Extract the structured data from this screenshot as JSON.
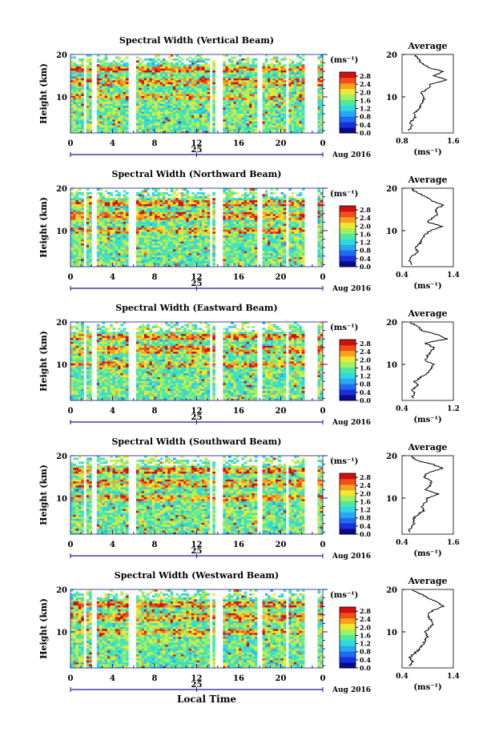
{
  "colors": {
    "colormap": [
      "#0a0a8c",
      "#1830d8",
      "#1e6cf0",
      "#28a8f0",
      "#30d8e0",
      "#50e8a0",
      "#a0f060",
      "#f0e830",
      "#f8a020",
      "#f05018",
      "#d01010"
    ],
    "background": "#ffffff",
    "axis": "#1a1a8c",
    "line": "#000000"
  },
  "footer": {
    "xlabel": "Local Time"
  },
  "chart_data": [
    {
      "type": "heatmap",
      "title": "Spectral Width (Vertical Beam)",
      "ylabel": "Height (km)",
      "ylim": [
        1.5,
        20
      ],
      "yticks": [
        "10",
        "20"
      ],
      "xlim": [
        0,
        24
      ],
      "xticks": [
        "0",
        "4",
        "8",
        "12",
        "16",
        "20",
        "0"
      ],
      "date_label": "25",
      "month_label": "Aug 2016",
      "colorbar": {
        "unit": "(ms⁻¹)",
        "ticks": [
          "2.8",
          "2.4",
          "2.0",
          "1.6",
          "1.2",
          "0.8",
          "0.4",
          "0.0"
        ],
        "range": [
          0,
          3.0
        ]
      },
      "gaps_hours": [
        [
          1.2,
          1.5
        ],
        [
          2.1,
          2.4
        ],
        [
          5.4,
          6.2
        ],
        [
          13.2,
          13.4
        ],
        [
          13.8,
          14.4
        ],
        [
          17.8,
          18.2
        ],
        [
          20.6,
          20.8
        ],
        [
          22.2,
          23.6
        ]
      ],
      "profile": {
        "title": "Average",
        "xlabel": "(ms⁻¹)",
        "xlim": [
          0.8,
          1.6
        ],
        "xticks": [
          "0.8",
          "1.6"
        ],
        "yticks": [
          "10",
          "20"
        ],
        "height_km": [
          2,
          3,
          4,
          5,
          6,
          7,
          8,
          9,
          10,
          11,
          12,
          13,
          14,
          15,
          16,
          17,
          18,
          19,
          20
        ],
        "value": [
          0.9,
          0.95,
          0.92,
          1.0,
          0.98,
          1.05,
          1.1,
          1.12,
          1.15,
          1.1,
          1.2,
          1.25,
          1.5,
          1.3,
          1.45,
          1.2,
          1.1,
          1.05,
          1.0
        ]
      }
    },
    {
      "type": "heatmap",
      "title": "Spectral Width (Northward Beam)",
      "ylabel": "Height (km)",
      "ylim": [
        1.5,
        20
      ],
      "yticks": [
        "10",
        "20"
      ],
      "xlim": [
        0,
        24
      ],
      "xticks": [
        "0",
        "4",
        "8",
        "12",
        "16",
        "20",
        "0"
      ],
      "date_label": "25",
      "month_label": "Aug 2016",
      "colorbar": {
        "unit": "(ms⁻¹)",
        "ticks": [
          "2.8",
          "2.4",
          "2.0",
          "1.6",
          "1.2",
          "0.8",
          "0.4",
          "0.0"
        ],
        "range": [
          0,
          3.0
        ]
      },
      "gaps_hours": [
        [
          1.2,
          1.5
        ],
        [
          2.1,
          2.4
        ],
        [
          5.4,
          6.2
        ],
        [
          13.2,
          13.4
        ],
        [
          13.8,
          14.4
        ],
        [
          17.8,
          18.2
        ],
        [
          20.6,
          20.8
        ],
        [
          22.2,
          23.6
        ]
      ],
      "profile": {
        "title": "Average",
        "xlabel": "(ms⁻¹)",
        "xlim": [
          0.4,
          1.4
        ],
        "xticks": [
          "0.4",
          "1.4"
        ],
        "yticks": [
          "10",
          "20"
        ],
        "height_km": [
          2,
          3,
          4,
          5,
          6,
          7,
          8,
          9,
          10,
          11,
          12,
          13,
          14,
          15,
          16,
          17,
          18,
          19,
          20
        ],
        "value": [
          0.6,
          0.55,
          0.6,
          0.7,
          0.65,
          0.75,
          0.8,
          0.85,
          0.95,
          1.2,
          0.9,
          1.0,
          1.1,
          1.05,
          1.2,
          1.0,
          0.85,
          0.7,
          0.55
        ]
      }
    },
    {
      "type": "heatmap",
      "title": "Spectral Width (Eastward Beam)",
      "ylabel": "Height (km)",
      "ylim": [
        1.5,
        20
      ],
      "yticks": [
        "10",
        "20"
      ],
      "xlim": [
        0,
        24
      ],
      "xticks": [
        "0",
        "4",
        "8",
        "12",
        "16",
        "20",
        "0"
      ],
      "date_label": "25",
      "month_label": "Aug 2016",
      "colorbar": {
        "unit": "(ms⁻¹)",
        "ticks": [
          "2.8",
          "2.4",
          "2.0",
          "1.6",
          "1.2",
          "0.8",
          "0.4",
          "0.0"
        ],
        "range": [
          0,
          3.0
        ]
      },
      "gaps_hours": [
        [
          1.2,
          1.5
        ],
        [
          2.1,
          2.4
        ],
        [
          5.4,
          6.2
        ],
        [
          13.2,
          13.4
        ],
        [
          13.8,
          14.4
        ],
        [
          17.8,
          18.2
        ],
        [
          20.6,
          20.8
        ],
        [
          22.2,
          23.6
        ]
      ],
      "profile": {
        "title": "Average",
        "xlabel": "(ms⁻¹)",
        "xlim": [
          0.4,
          1.2
        ],
        "xticks": [
          "0.4",
          "1.2"
        ],
        "yticks": [
          "10",
          "20"
        ],
        "height_km": [
          2,
          3,
          4,
          5,
          6,
          7,
          8,
          9,
          10,
          11,
          12,
          13,
          14,
          15,
          16,
          17,
          18,
          19,
          20
        ],
        "value": [
          0.55,
          0.6,
          0.55,
          0.65,
          0.6,
          0.7,
          0.8,
          0.85,
          0.9,
          0.75,
          0.8,
          0.85,
          0.9,
          0.75,
          1.1,
          0.95,
          0.7,
          0.65,
          0.5
        ]
      }
    },
    {
      "type": "heatmap",
      "title": "Spectral Width (Southward Beam)",
      "ylabel": "Height (km)",
      "ylim": [
        1.5,
        20
      ],
      "yticks": [
        "10",
        "20"
      ],
      "xlim": [
        0,
        24
      ],
      "xticks": [
        "0",
        "4",
        "8",
        "12",
        "16",
        "20",
        "0"
      ],
      "date_label": "25",
      "month_label": "Aug 2016",
      "colorbar": {
        "unit": "(ms⁻¹)",
        "ticks": [
          "2.8",
          "2.4",
          "2.0",
          "1.6",
          "1.2",
          "0.8",
          "0.4",
          "0.0"
        ],
        "range": [
          0,
          3.0
        ]
      },
      "gaps_hours": [
        [
          1.2,
          1.5
        ],
        [
          2.1,
          2.4
        ],
        [
          5.4,
          6.2
        ],
        [
          13.2,
          13.4
        ],
        [
          13.8,
          14.4
        ],
        [
          17.8,
          18.2
        ],
        [
          20.6,
          20.8
        ],
        [
          22.2,
          23.6
        ]
      ],
      "profile": {
        "title": "Average",
        "xlabel": "(ms⁻¹)",
        "xlim": [
          0.4,
          1.6
        ],
        "xticks": [
          "0.4",
          "1.6"
        ],
        "yticks": [
          "10",
          "20"
        ],
        "height_km": [
          2,
          3,
          4,
          5,
          6,
          7,
          8,
          9,
          10,
          11,
          12,
          13,
          14,
          15,
          16,
          17,
          18,
          19,
          20
        ],
        "value": [
          0.55,
          0.6,
          0.7,
          0.65,
          0.75,
          0.9,
          0.85,
          0.95,
          1.0,
          1.25,
          0.95,
          1.05,
          1.1,
          0.9,
          1.0,
          1.35,
          1.1,
          0.7,
          0.6
        ]
      }
    },
    {
      "type": "heatmap",
      "title": "Spectral Width (Westward Beam)",
      "ylabel": "Height (km)",
      "ylim": [
        1.5,
        20
      ],
      "yticks": [
        "10",
        "20"
      ],
      "xlim": [
        0,
        24
      ],
      "xticks": [
        "0",
        "4",
        "8",
        "12",
        "16",
        "20",
        "0"
      ],
      "date_label": "25",
      "month_label": "Aug 2016",
      "colorbar": {
        "unit": "(ms⁻¹)",
        "ticks": [
          "2.8",
          "2.4",
          "2.0",
          "1.6",
          "1.2",
          "0.8",
          "0.4",
          "0.0"
        ],
        "range": [
          0,
          3.0
        ]
      },
      "gaps_hours": [
        [
          1.2,
          1.5
        ],
        [
          2.1,
          2.4
        ],
        [
          5.4,
          6.2
        ],
        [
          13.2,
          13.4
        ],
        [
          13.8,
          14.4
        ],
        [
          17.8,
          18.2
        ],
        [
          20.6,
          20.8
        ],
        [
          22.2,
          23.6
        ]
      ],
      "profile": {
        "title": "Average",
        "xlabel": "(ms⁻¹)",
        "xlim": [
          0.4,
          1.4
        ],
        "xticks": [
          "0.4",
          "1.4"
        ],
        "yticks": [
          "10",
          "20"
        ],
        "height_km": [
          2,
          3,
          4,
          5,
          6,
          7,
          8,
          9,
          10,
          11,
          12,
          13,
          14,
          15,
          16,
          17,
          18,
          19,
          20
        ],
        "value": [
          0.55,
          0.6,
          0.55,
          0.65,
          0.75,
          0.8,
          0.85,
          0.9,
          0.85,
          0.95,
          1.0,
          0.95,
          0.9,
          1.0,
          1.2,
          1.1,
          0.9,
          0.75,
          0.55
        ]
      }
    }
  ]
}
